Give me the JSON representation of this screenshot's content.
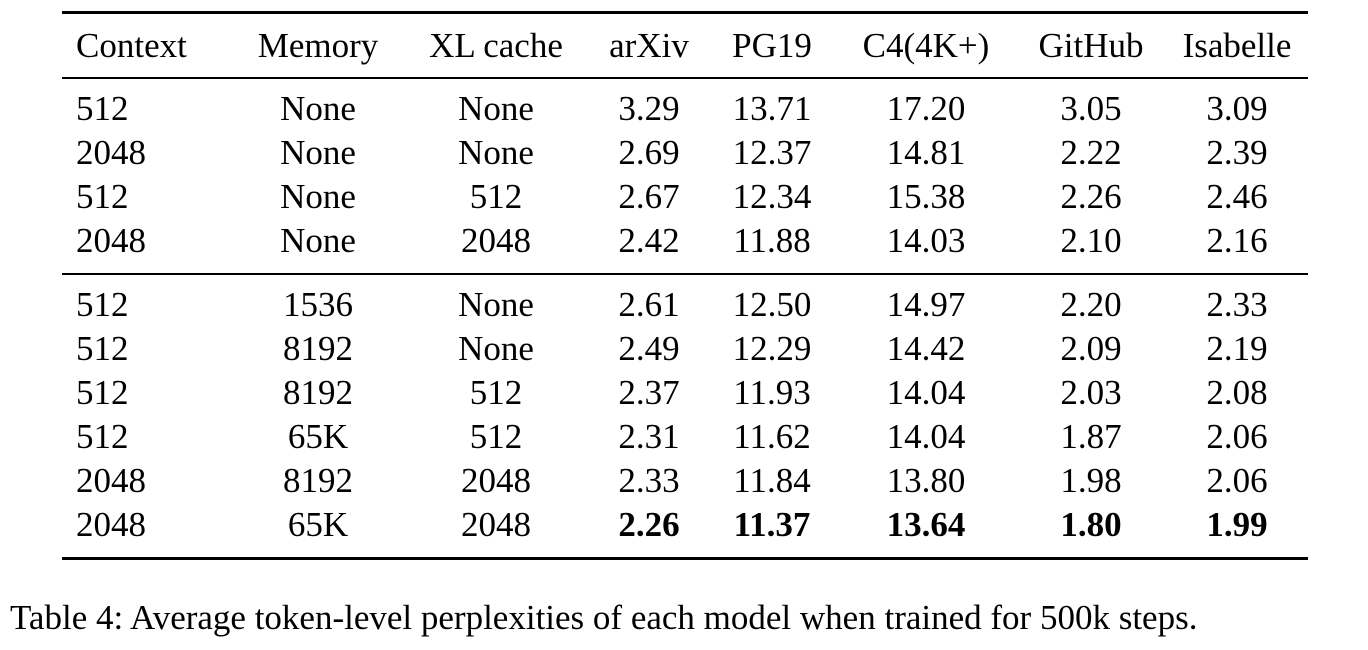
{
  "table": {
    "columns": [
      "Context",
      "Memory",
      "XL cache",
      "arXiv",
      "PG19",
      "C4(4K+)",
      "GitHub",
      "Isabelle"
    ],
    "groups": [
      [
        [
          "512",
          "None",
          "None",
          "3.29",
          "13.71",
          "17.20",
          "3.05",
          "3.09"
        ],
        [
          "2048",
          "None",
          "None",
          "2.69",
          "12.37",
          "14.81",
          "2.22",
          "2.39"
        ],
        [
          "512",
          "None",
          "512",
          "2.67",
          "12.34",
          "15.38",
          "2.26",
          "2.46"
        ],
        [
          "2048",
          "None",
          "2048",
          "2.42",
          "11.88",
          "14.03",
          "2.10",
          "2.16"
        ]
      ],
      [
        [
          "512",
          "1536",
          "None",
          "2.61",
          "12.50",
          "14.97",
          "2.20",
          "2.33"
        ],
        [
          "512",
          "8192",
          "None",
          "2.49",
          "12.29",
          "14.42",
          "2.09",
          "2.19"
        ],
        [
          "512",
          "8192",
          "512",
          "2.37",
          "11.93",
          "14.04",
          "2.03",
          "2.08"
        ],
        [
          "512",
          "65K",
          "512",
          "2.31",
          "11.62",
          "14.04",
          "1.87",
          "2.06"
        ],
        [
          "2048",
          "8192",
          "2048",
          "2.33",
          "11.84",
          "13.80",
          "1.98",
          "2.06"
        ],
        [
          "2048",
          "65K",
          "2048",
          "2.26",
          "11.37",
          "13.64",
          "1.80",
          "1.99"
        ]
      ]
    ],
    "bold_cells": [
      [
        1,
        5,
        3
      ],
      [
        1,
        5,
        4
      ],
      [
        1,
        5,
        5
      ],
      [
        1,
        5,
        6
      ],
      [
        1,
        5,
        7
      ]
    ]
  },
  "caption": "Table 4: Average token-level perplexities of each model when trained for 500k steps."
}
